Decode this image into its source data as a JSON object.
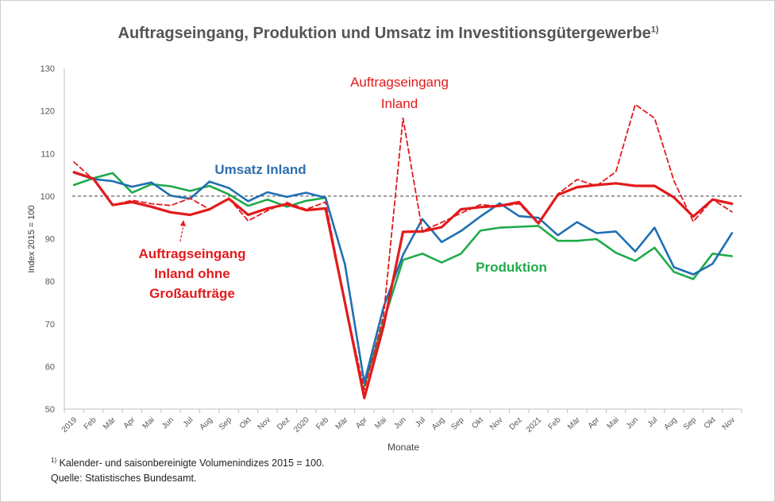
{
  "chart_data": {
    "type": "line",
    "title": "Auftragseingang, Produktion und Umsatz im Investitionsgütergewerbe",
    "title_footnote_mark": "1)",
    "xlabel": "Monate",
    "ylabel": "Index 2015 = 100",
    "ylim": [
      50,
      130
    ],
    "yticks": [
      50,
      60,
      70,
      80,
      90,
      100,
      110,
      120,
      130
    ],
    "reference_line": 100,
    "x": [
      "2019",
      "Feb",
      "Mär",
      "Apr",
      "Mai",
      "Jun",
      "Jul",
      "Aug",
      "Sep",
      "Okt",
      "Nov",
      "Dez",
      "2020",
      "Feb",
      "Mär",
      "Apr",
      "Mai",
      "Jun",
      "Jul",
      "Aug",
      "Sep",
      "Okt",
      "Nov",
      "Dez",
      "2021",
      "Feb",
      "Mär",
      "Apr",
      "Mai",
      "Jun",
      "Jul",
      "Aug",
      "Sep",
      "Okt",
      "Nov"
    ],
    "series": [
      {
        "name": "Umsatz Inland",
        "color": "#1f6fb4",
        "style": "solid",
        "values": [
          105.5,
          104.0,
          103.5,
          102.2,
          103.2,
          100.1,
          99.4,
          103.4,
          101.9,
          98.8,
          100.9,
          99.8,
          100.8,
          99.6,
          84.0,
          56.2,
          74.0,
          86.2,
          94.6,
          89.2,
          91.8,
          95.2,
          98.3,
          95.3,
          94.9,
          90.8,
          93.9,
          91.3,
          91.7,
          87.0,
          92.6,
          83.3,
          81.6,
          84.1,
          91.3
        ]
      },
      {
        "name": "Produktion",
        "color": "#1faa4a",
        "style": "solid",
        "values": [
          102.6,
          104.2,
          105.4,
          100.8,
          102.8,
          102.3,
          101.2,
          102.4,
          100.4,
          97.7,
          99.2,
          97.5,
          98.9,
          99.6,
          null,
          55.4,
          70.6,
          85.0,
          86.5,
          84.4,
          86.5,
          91.9,
          92.6,
          92.8,
          93.0,
          89.5,
          89.5,
          89.9,
          86.7,
          84.8,
          87.9,
          82.2,
          80.5,
          86.5,
          85.9
        ]
      },
      {
        "name": "Auftragseingang Inland",
        "color": "#e31a1c",
        "style": "dashed",
        "values": [
          108.0,
          103.9,
          97.9,
          99.0,
          98.2,
          97.8,
          99.5,
          96.9,
          99.5,
          94.2,
          96.6,
          98.5,
          96.9,
          98.6,
          75.0,
          54.5,
          72.0,
          118.3,
          91.8,
          93.8,
          96.0,
          98.0,
          97.6,
          98.2,
          93.6,
          100.5,
          103.9,
          102.4,
          105.7,
          121.5,
          118.3,
          103.6,
          94.0,
          99.2,
          96.3
        ]
      },
      {
        "name": "Auftragseingang Inland ohne Großaufträge",
        "color": "#e31a1c",
        "style": "solid-thick",
        "values": [
          105.6,
          104.1,
          97.9,
          98.6,
          97.5,
          96.2,
          95.6,
          96.9,
          99.4,
          95.6,
          97.1,
          98.1,
          96.7,
          97.1,
          75.0,
          52.6,
          69.5,
          91.6,
          91.7,
          92.7,
          96.9,
          97.4,
          97.7,
          98.6,
          93.6,
          100.3,
          102.1,
          102.6,
          103.0,
          102.4,
          102.4,
          99.7,
          95.2,
          99.2,
          98.2
        ]
      }
    ],
    "annotations": [
      {
        "text": "Umsatz Inland",
        "series": 0
      },
      {
        "text": "Produktion",
        "series": 1
      },
      {
        "lines": [
          "Auftragseingang",
          "Inland"
        ],
        "series": 2
      },
      {
        "lines": [
          "Auftragseingang",
          "Inland ohne",
          "Großaufträge"
        ],
        "series": 3
      }
    ]
  },
  "footnote": {
    "mark": "1)",
    "text": " Kalender- und saisonbereinigte Volumenindizes 2015 = 100.",
    "source": "Quelle: Statistisches Bundesamt."
  }
}
